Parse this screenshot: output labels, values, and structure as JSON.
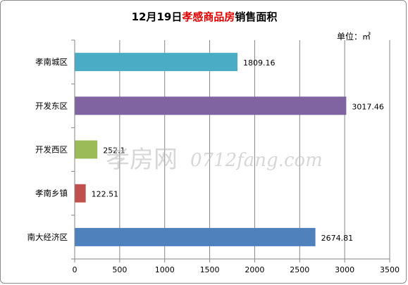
{
  "chart_data": {
    "type": "bar",
    "orientation": "horizontal",
    "title_prefix": "12月19日",
    "title_highlight": "孝感商品房",
    "title_suffix": "销售面积",
    "unit": "单位：㎡",
    "categories": [
      "孝南城区",
      "开发东区",
      "开发西区",
      "孝南乡镇",
      "南大经济区"
    ],
    "values": [
      1809.16,
      3017.46,
      252.1,
      122.51,
      2674.81
    ],
    "value_labels": [
      "1809.16",
      "3017.46",
      "252.1",
      "122.51",
      "2674.81"
    ],
    "colors": [
      "#4bacc6",
      "#8064a2",
      "#9bbb59",
      "#c0504d",
      "#4f81bd"
    ],
    "xlim": [
      0,
      3500
    ],
    "xticks": [
      "0",
      "500",
      "1000",
      "1500",
      "2000",
      "2500",
      "3000",
      "3500"
    ],
    "grid": true,
    "title_color": "#000000",
    "highlight_color": "#e00000"
  },
  "watermark": {
    "brand": "孝房网",
    "site": "0712fang.com"
  }
}
